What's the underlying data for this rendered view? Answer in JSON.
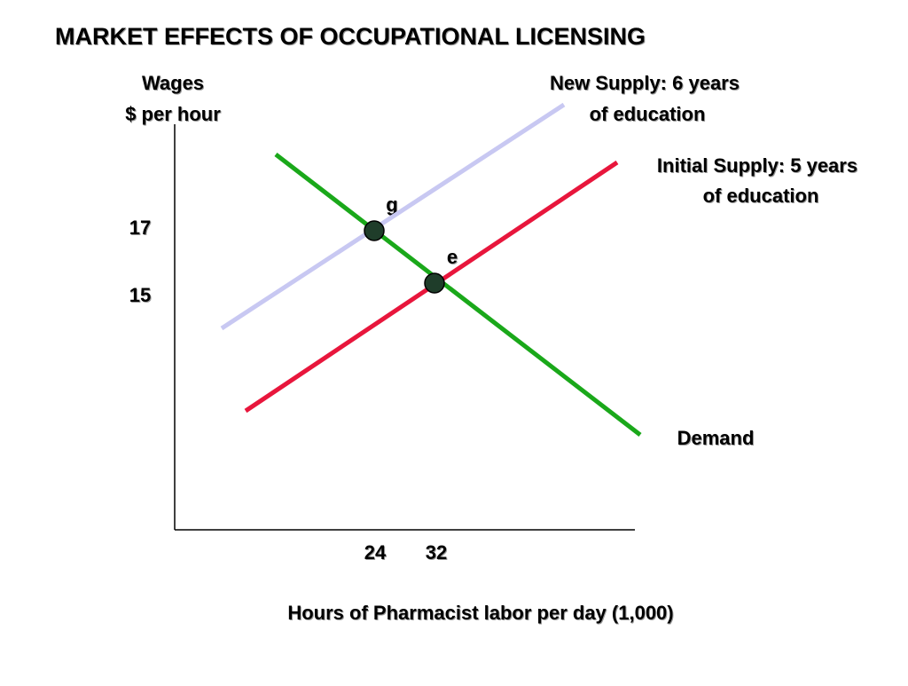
{
  "header": {
    "title": "MARKET EFFECTS OF OCCUPATIONAL LICENSING"
  },
  "y_axis": {
    "label": [
      "Wages",
      "$ per hour"
    ],
    "ticks": [
      "17",
      "15"
    ]
  },
  "x_axis": {
    "label": "Hours of Pharmacist  labor per day (1,000)",
    "ticks": [
      "24",
      "32"
    ]
  },
  "curves": [
    {
      "label": [
        "New Supply: 6 years",
        "of education"
      ]
    },
    {
      "label": [
        "Initial Supply: 5 years",
        "of education"
      ]
    },
    {
      "label": [
        "Demand"
      ]
    }
  ],
  "points": [
    {
      "label": "g"
    },
    {
      "label": "e"
    }
  ]
}
